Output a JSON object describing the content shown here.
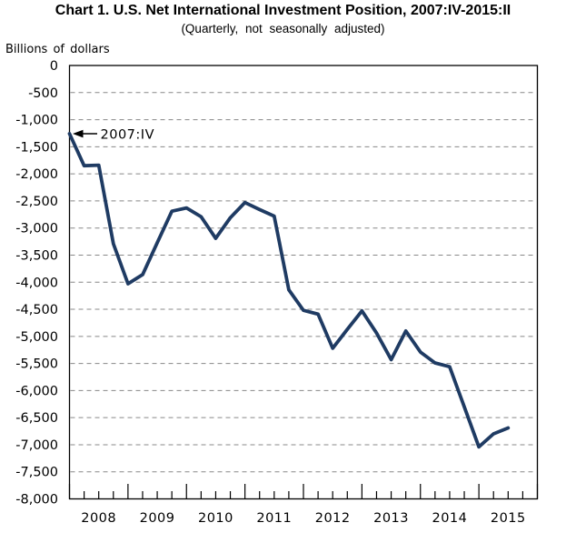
{
  "chart": {
    "title": "Chart 1. U.S. Net International Investment Position, 2007:IV-2015:II",
    "subtitle": "(Quarterly,  not  seasonally  adjusted)",
    "y_axis_unit": "Billions  of dollars",
    "annotation_label": "2007:IV"
  },
  "chart_data": {
    "type": "line",
    "title": "Chart 1. U.S. Net International Investment Position, 2007:IV-2015:II",
    "subtitle": "(Quarterly, not seasonally adjusted)",
    "ylabel": "Billions of dollars",
    "ylim": [
      -8000,
      0
    ],
    "y_tick_interval": 500,
    "y_tick_labels": [
      "0",
      "-500",
      "-1,000",
      "-1,500",
      "-2,000",
      "-2,500",
      "-3,000",
      "-3,500",
      "-4,000",
      "-4,500",
      "-5,000",
      "-5,500",
      "-6,000",
      "-6,500",
      "-7,000",
      "-7,500",
      "-8,000"
    ],
    "x_year_labels": [
      "2008",
      "2009",
      "2010",
      "2011",
      "2012",
      "2013",
      "2014",
      "2015"
    ],
    "grid": "horizontal-dashed",
    "legend": "none",
    "line_color": "#1F3B63",
    "grid_color": "#888888",
    "annotation": {
      "text": "2007:IV",
      "points_to_x": "2007:IV",
      "points_to_y": -1260
    },
    "x": [
      "2007:IV",
      "2008:I",
      "2008:II",
      "2008:III",
      "2008:IV",
      "2009:I",
      "2009:II",
      "2009:III",
      "2009:IV",
      "2010:I",
      "2010:II",
      "2010:III",
      "2010:IV",
      "2011:I",
      "2011:II",
      "2011:III",
      "2011:IV",
      "2012:I",
      "2012:II",
      "2012:III",
      "2012:IV",
      "2013:I",
      "2013:II",
      "2013:III",
      "2013:IV",
      "2014:I",
      "2014:II",
      "2014:III",
      "2014:IV",
      "2015:I",
      "2015:II"
    ],
    "values": [
      -1260,
      -1850,
      -1840,
      -3290,
      -4030,
      -3860,
      -3270,
      -2690,
      -2630,
      -2790,
      -3190,
      -2810,
      -2530,
      -2660,
      -2780,
      -4140,
      -4520,
      -4590,
      -5220,
      -4870,
      -4530,
      -4940,
      -5430,
      -4900,
      -5290,
      -5490,
      -5560,
      -6300,
      -7040,
      -6800,
      -6690
    ]
  }
}
